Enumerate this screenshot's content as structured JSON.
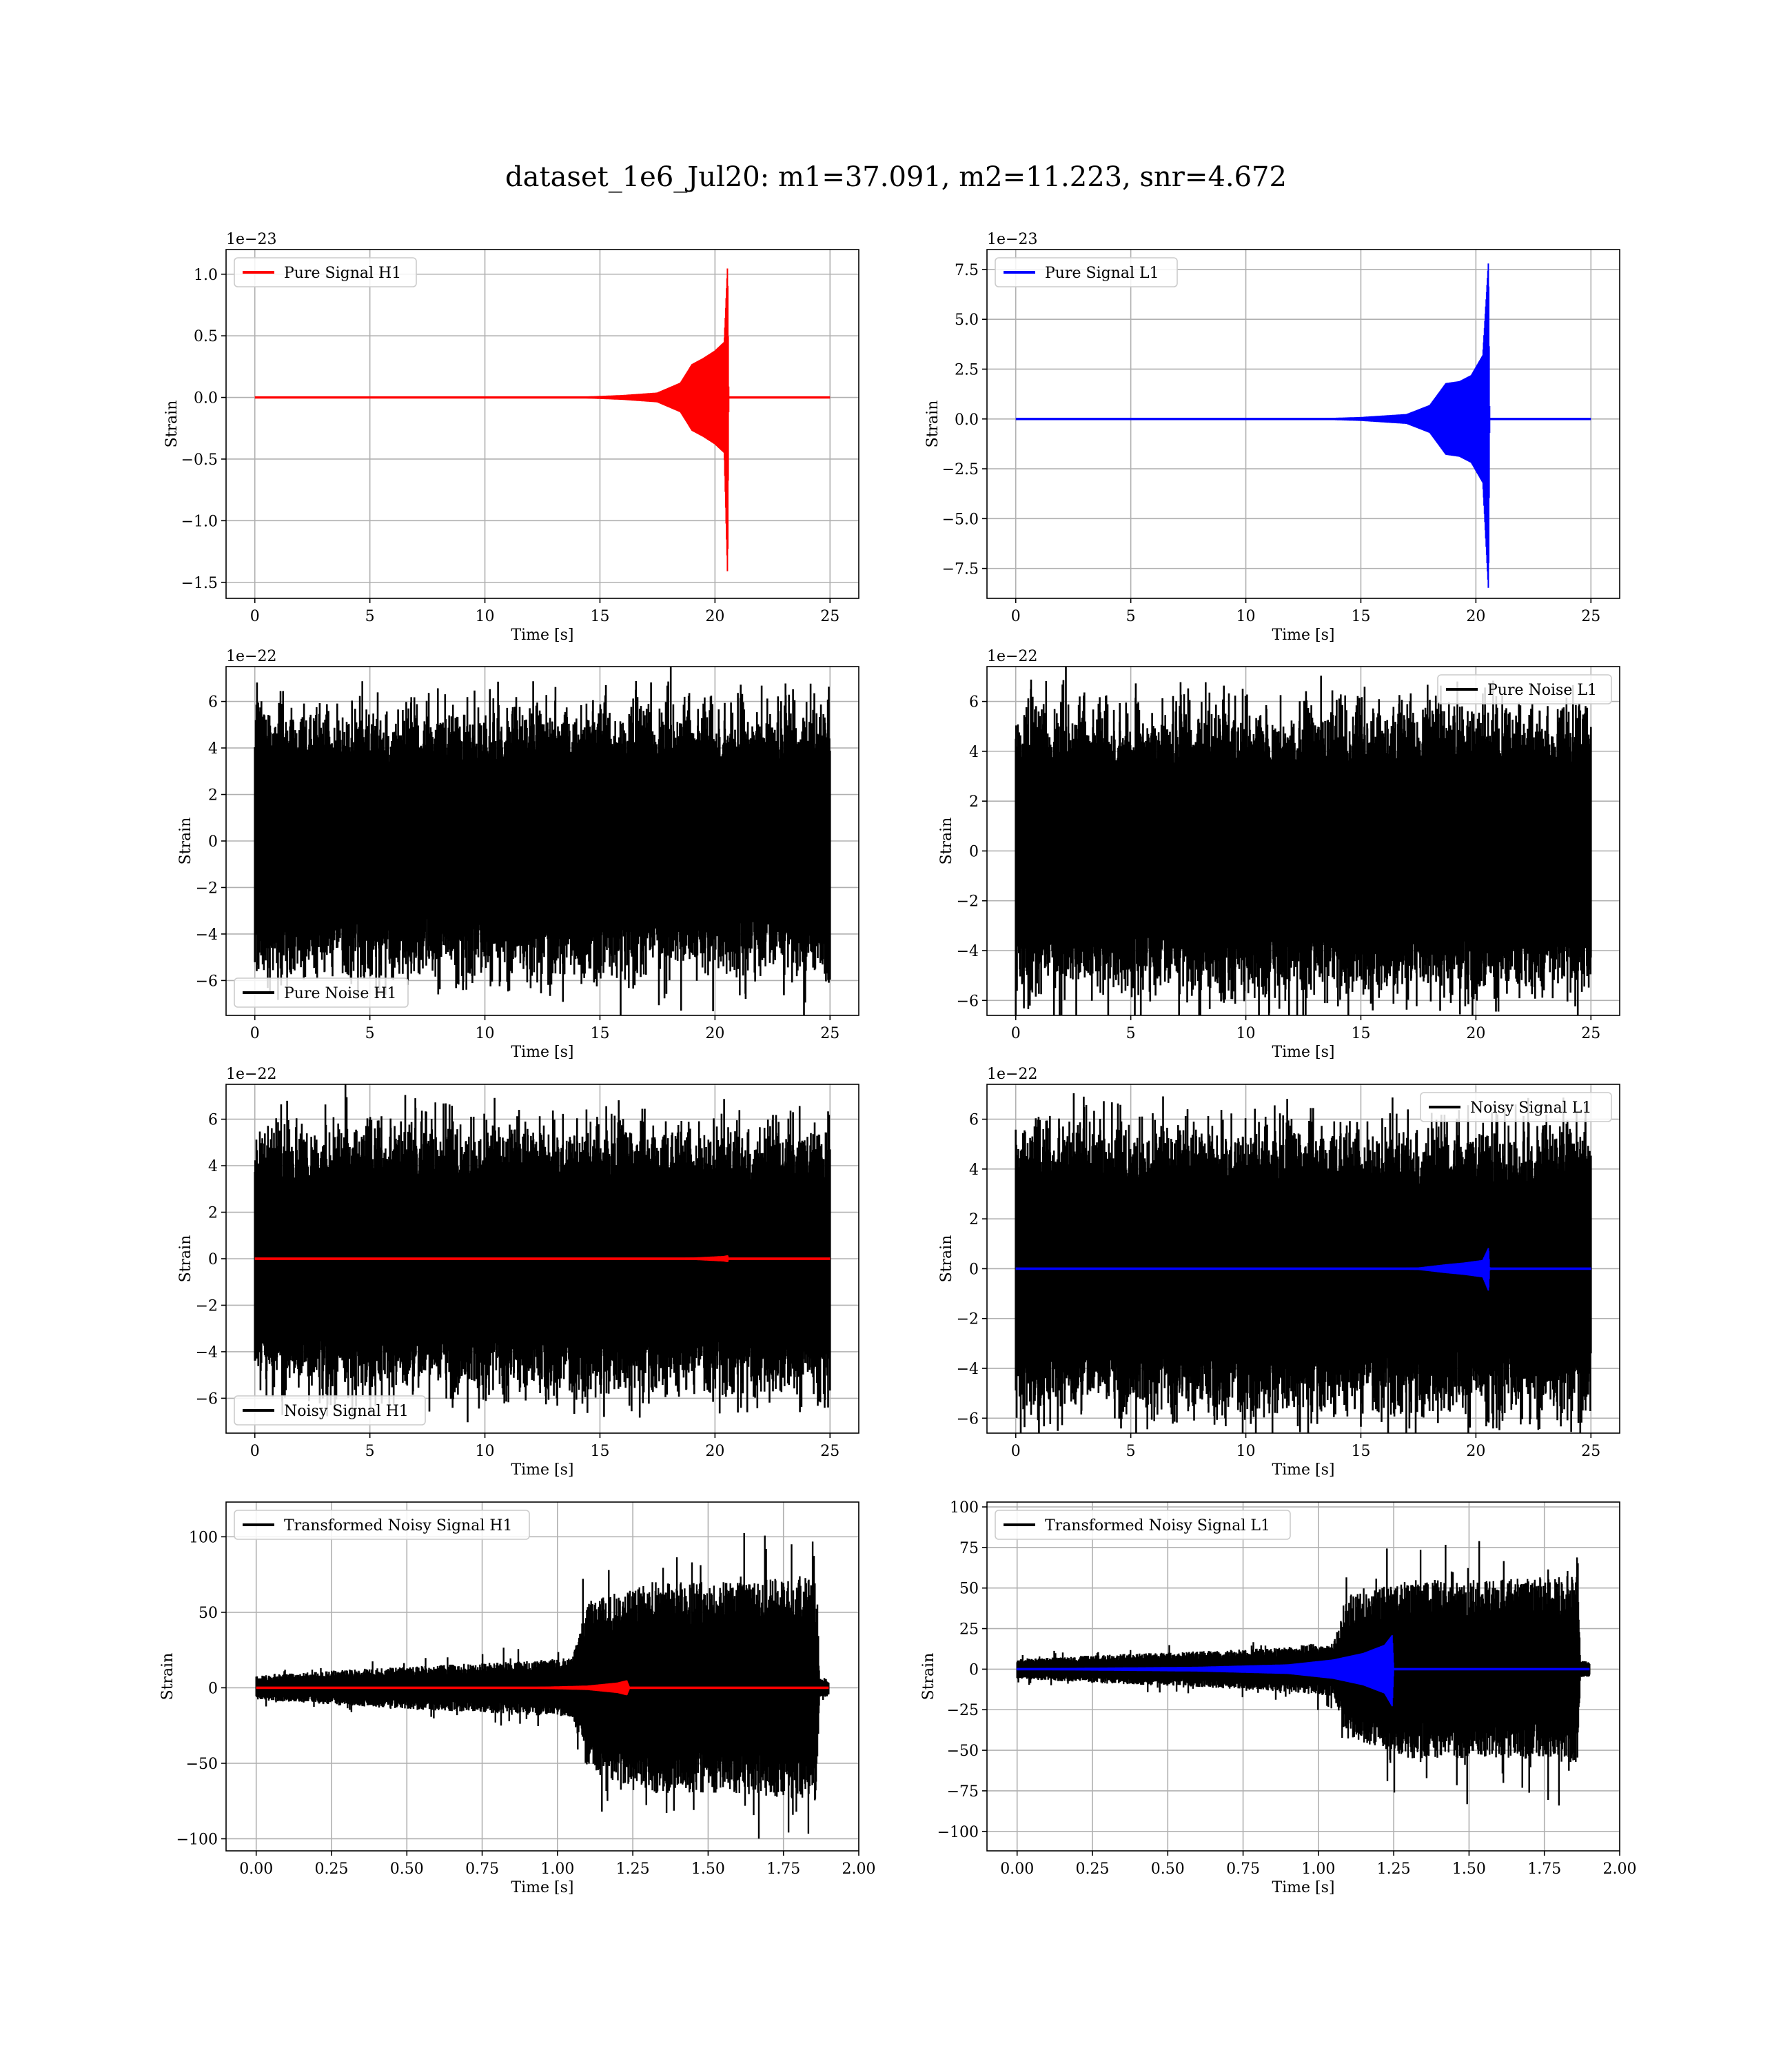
{
  "figure": {
    "title": "dataset_1e6_Jul20: m1=37.091, m2=11.223, snr=4.672"
  },
  "chart_data": [
    {
      "type": "line",
      "panel": "Pure Signal H1",
      "xlabel": "Time [s]",
      "ylabel": "Strain",
      "multiplier": "1e−23",
      "xlim": [
        -1.25,
        26.25
      ],
      "ylim": [
        -1.63,
        1.2
      ],
      "xticks": [
        0,
        5,
        10,
        15,
        20,
        25
      ],
      "xtick_labels": [
        "0",
        "5",
        "10",
        "15",
        "20",
        "25"
      ],
      "yticks": [
        -1.5,
        -1.0,
        -0.5,
        0.0,
        0.5,
        1.0
      ],
      "ytick_labels": [
        "−1.5",
        "−1.0",
        "−0.5",
        "0.0",
        "0.5",
        "1.0"
      ],
      "legend": {
        "position": "upper left"
      },
      "grid": true,
      "series": [
        {
          "name": "Pure Signal H1",
          "color": "#ff0000",
          "envelope": {
            "x": [
              0,
              14,
              16,
              17.5,
              18.5,
              19.0,
              19.5,
              20.0,
              20.4,
              20.55,
              20.6,
              20.65,
              25
            ],
            "upper": [
              0,
              0.005,
              0.02,
              0.04,
              0.12,
              0.27,
              0.32,
              0.38,
              0.45,
              1.09,
              0,
              0,
              0
            ],
            "lower": [
              0,
              -0.005,
              -0.02,
              -0.04,
              -0.12,
              -0.27,
              -0.32,
              -0.38,
              -0.45,
              -1.48,
              0,
              0,
              0
            ]
          }
        }
      ]
    },
    {
      "type": "line",
      "panel": "Pure Signal L1",
      "xlabel": "Time [s]",
      "ylabel": "Strain",
      "multiplier": "1e−23",
      "xlim": [
        -1.25,
        26.25
      ],
      "ylim": [
        -9.0,
        8.5
      ],
      "xticks": [
        0,
        5,
        10,
        15,
        20,
        25
      ],
      "xtick_labels": [
        "0",
        "5",
        "10",
        "15",
        "20",
        "25"
      ],
      "yticks": [
        -7.5,
        -5.0,
        -2.5,
        0.0,
        2.5,
        5.0,
        7.5
      ],
      "ytick_labels": [
        "−7.5",
        "−5.0",
        "−2.5",
        "0.0",
        "2.5",
        "5.0",
        "7.5"
      ],
      "legend": {
        "position": "upper left"
      },
      "grid": true,
      "series": [
        {
          "name": "Pure Signal L1",
          "color": "#0000ff",
          "envelope": {
            "x": [
              0,
              13,
              15,
              17,
              18,
              18.7,
              19.3,
              19.8,
              20.3,
              20.55,
              20.6,
              20.65,
              25
            ],
            "upper": [
              0,
              0.03,
              0.1,
              0.25,
              0.7,
              1.8,
              1.9,
              2.2,
              3.2,
              8.0,
              0,
              0,
              0
            ],
            "lower": [
              0,
              -0.03,
              -0.1,
              -0.25,
              -0.7,
              -1.8,
              -1.9,
              -2.2,
              -3.2,
              -8.7,
              0,
              0,
              0
            ]
          }
        }
      ]
    },
    {
      "type": "line",
      "panel": "Pure Noise H1",
      "xlabel": "Time [s]",
      "ylabel": "Strain",
      "multiplier": "1e−22",
      "xlim": [
        -1.25,
        26.25
      ],
      "ylim": [
        -7.5,
        7.5
      ],
      "xticks": [
        0,
        5,
        10,
        15,
        20,
        25
      ],
      "xtick_labels": [
        "0",
        "5",
        "10",
        "15",
        "20",
        "25"
      ],
      "yticks": [
        -6,
        -4,
        -2,
        0,
        2,
        4,
        6
      ],
      "ytick_labels": [
        "−6",
        "−4",
        "−2",
        "0",
        "2",
        "4",
        "6"
      ],
      "legend": {
        "position": "lower left"
      },
      "grid": true,
      "series": [
        {
          "name": "Pure Noise H1",
          "color": "#000000",
          "noise_amplitude": [
            3.6,
            6.9
          ],
          "x_range": [
            0,
            25
          ]
        }
      ]
    },
    {
      "type": "line",
      "panel": "Pure Noise L1",
      "xlabel": "Time [s]",
      "ylabel": "Strain",
      "multiplier": "1e−22",
      "xlim": [
        -1.25,
        26.25
      ],
      "ylim": [
        -6.6,
        7.4
      ],
      "xticks": [
        0,
        5,
        10,
        15,
        20,
        25
      ],
      "xtick_labels": [
        "0",
        "5",
        "10",
        "15",
        "20",
        "25"
      ],
      "yticks": [
        -6,
        -4,
        -2,
        0,
        2,
        4,
        6
      ],
      "ytick_labels": [
        "−6",
        "−4",
        "−2",
        "0",
        "2",
        "4",
        "6"
      ],
      "legend": {
        "position": "upper right"
      },
      "grid": true,
      "series": [
        {
          "name": "Pure Noise L1",
          "color": "#000000",
          "noise_amplitude": [
            3.6,
            6.8
          ],
          "x_range": [
            0,
            25
          ]
        }
      ]
    },
    {
      "type": "line",
      "panel": "Noisy Signal H1",
      "xlabel": "Time [s]",
      "ylabel": "Strain",
      "multiplier": "1e−22",
      "xlim": [
        -1.25,
        26.25
      ],
      "ylim": [
        -7.5,
        7.5
      ],
      "xticks": [
        0,
        5,
        10,
        15,
        20,
        25
      ],
      "xtick_labels": [
        "0",
        "5",
        "10",
        "15",
        "20",
        "25"
      ],
      "yticks": [
        -6,
        -4,
        -2,
        0,
        2,
        4,
        6
      ],
      "ytick_labels": [
        "−6",
        "−4",
        "−2",
        "0",
        "2",
        "4",
        "6"
      ],
      "legend": {
        "position": "lower left"
      },
      "grid": true,
      "series": [
        {
          "name": "Noisy Signal H1",
          "color": "#000000",
          "noise_amplitude": [
            3.6,
            6.9
          ],
          "x_range": [
            0,
            25
          ]
        },
        {
          "color": "#ff0000",
          "envelope": {
            "x": [
              0,
              17,
              19,
              20.4,
              20.55,
              20.6,
              25
            ],
            "upper": [
              0,
              0.02,
              0.05,
              0.12,
              0.15,
              0,
              0
            ],
            "lower": [
              0,
              -0.02,
              -0.05,
              -0.12,
              -0.15,
              0,
              0
            ]
          }
        }
      ]
    },
    {
      "type": "line",
      "panel": "Noisy Signal L1",
      "xlabel": "Time [s]",
      "ylabel": "Strain",
      "multiplier": "1e−22",
      "xlim": [
        -1.25,
        26.25
      ],
      "ylim": [
        -6.6,
        7.4
      ],
      "xticks": [
        0,
        5,
        10,
        15,
        20,
        25
      ],
      "xtick_labels": [
        "0",
        "5",
        "10",
        "15",
        "20",
        "25"
      ],
      "yticks": [
        -6,
        -4,
        -2,
        0,
        2,
        4,
        6
      ],
      "ytick_labels": [
        "−6",
        "−4",
        "−2",
        "0",
        "2",
        "4",
        "6"
      ],
      "legend": {
        "position": "upper right"
      },
      "grid": true,
      "series": [
        {
          "name": "Noisy Signal L1",
          "color": "#000000",
          "noise_amplitude": [
            3.6,
            6.8
          ],
          "x_range": [
            0,
            25
          ]
        },
        {
          "color": "#0000ff",
          "envelope": {
            "x": [
              0,
              15,
              17.5,
              18.7,
              19.5,
              20.3,
              20.55,
              20.6,
              25
            ],
            "upper": [
              0,
              0.01,
              0.05,
              0.18,
              0.25,
              0.35,
              0.85,
              0,
              0
            ],
            "lower": [
              0,
              -0.01,
              -0.05,
              -0.18,
              -0.25,
              -0.35,
              -0.9,
              0,
              0
            ]
          }
        }
      ]
    },
    {
      "type": "line",
      "panel": "Transformed Noisy Signal H1",
      "xlabel": "Time [s]",
      "ylabel": "Strain",
      "multiplier": "",
      "xlim": [
        -0.1,
        2.0
      ],
      "ylim": [
        -108,
        123
      ],
      "xticks": [
        0.0,
        0.25,
        0.5,
        0.75,
        1.0,
        1.25,
        1.5,
        1.75,
        2.0
      ],
      "xtick_labels": [
        "0.00",
        "0.25",
        "0.50",
        "0.75",
        "1.00",
        "1.25",
        "1.50",
        "1.75",
        "2.00"
      ],
      "yticks": [
        -100,
        -50,
        0,
        50,
        100
      ],
      "ytick_labels": [
        "−100",
        "−50",
        "0",
        "50",
        "100"
      ],
      "legend": {
        "position": "upper left"
      },
      "grid": true,
      "series": [
        {
          "name": "Transformed Noisy Signal H1",
          "color": "#000000",
          "envelope": {
            "x": [
              0.0,
              0.3,
              0.6,
              0.9,
              1.05,
              1.1,
              1.3,
              1.6,
              1.86,
              1.87,
              1.9
            ],
            "upper": [
              8,
              12,
              15,
              18,
              20,
              58,
              70,
              70,
              75,
              6,
              6
            ],
            "lower": [
              -8,
              -12,
              -15,
              -18,
              -20,
              -55,
              -70,
              -70,
              -75,
              -6,
              -6
            ]
          }
        },
        {
          "color": "#ff0000",
          "envelope": {
            "x": [
              0.0,
              0.9,
              1.1,
              1.2,
              1.23,
              1.24,
              1.9
            ],
            "upper": [
              0,
              0.5,
              1.5,
              3.5,
              5,
              0,
              0
            ],
            "lower": [
              0,
              -0.5,
              -1.5,
              -3.5,
              -5,
              0,
              0
            ]
          }
        }
      ]
    },
    {
      "type": "line",
      "panel": "Transformed Noisy Signal L1",
      "xlabel": "Time [s]",
      "ylabel": "Strain",
      "multiplier": "",
      "xlim": [
        -0.1,
        2.0
      ],
      "ylim": [
        -112,
        103
      ],
      "xticks": [
        0.0,
        0.25,
        0.5,
        0.75,
        1.0,
        1.25,
        1.5,
        1.75,
        2.0
      ],
      "xtick_labels": [
        "0.00",
        "0.25",
        "0.50",
        "0.75",
        "1.00",
        "1.25",
        "1.50",
        "1.75",
        "2.00"
      ],
      "yticks": [
        -100,
        -75,
        -50,
        -25,
        0,
        25,
        50,
        75,
        100
      ],
      "ytick_labels": [
        "−100",
        "−75",
        "−50",
        "−25",
        "0",
        "25",
        "50",
        "75",
        "100"
      ],
      "legend": {
        "position": "upper left"
      },
      "grid": true,
      "series": [
        {
          "name": "Transformed Noisy Signal L1",
          "color": "#000000",
          "envelope": {
            "x": [
              0.0,
              0.3,
              0.6,
              0.9,
              1.05,
              1.1,
              1.3,
              1.6,
              1.86,
              1.87,
              1.9
            ],
            "upper": [
              6,
              9,
              11,
              14,
              17,
              45,
              55,
              55,
              58,
              5,
              5
            ],
            "lower": [
              -6,
              -9,
              -11,
              -14,
              -17,
              -42,
              -55,
              -55,
              -58,
              -5,
              -5
            ]
          }
        },
        {
          "color": "#0000ff",
          "envelope": {
            "x": [
              0.0,
              0.6,
              0.9,
              1.05,
              1.15,
              1.22,
              1.245,
              1.25,
              1.9
            ],
            "upper": [
              0.5,
              1.5,
              3,
              6,
              10,
              15,
              21,
              0,
              0
            ],
            "lower": [
              -0.5,
              -1.5,
              -3,
              -6,
              -10,
              -15,
              -23,
              0,
              0
            ]
          }
        }
      ]
    }
  ]
}
